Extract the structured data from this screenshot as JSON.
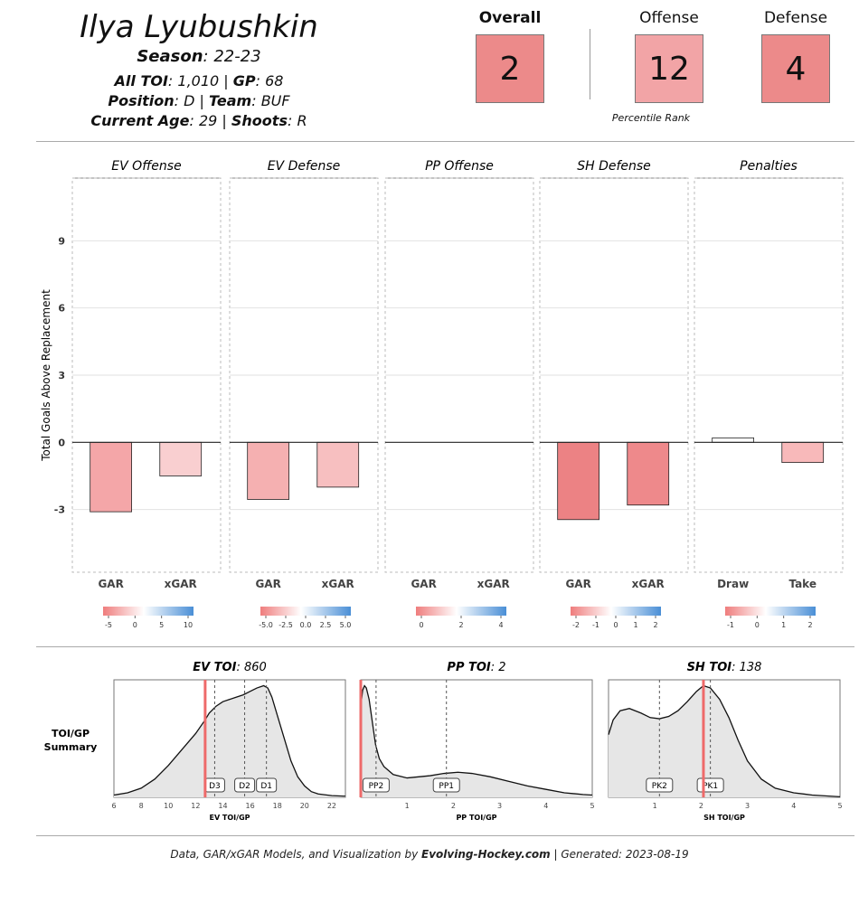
{
  "header": {
    "name": "Ilya Lyubushkin",
    "season_label": "Season",
    "season": "22-23",
    "toi_label": "All TOI",
    "toi": "1,010",
    "gp_label": "GP",
    "gp": "68",
    "position_label": "Position",
    "position": "D",
    "team_label": "Team",
    "team": "BUF",
    "age_label": "Current Age",
    "age": "29",
    "shoots_label": "Shoots",
    "shoots": "R"
  },
  "ranks": {
    "overall_label": "Overall",
    "overall": "2",
    "offense_label": "Offense",
    "offense": "12",
    "defense_label": "Defense",
    "defense": "4",
    "caption": "Percentile Rank",
    "colors": {
      "overall": "#ec8a8a",
      "offense": "#f2a4a6",
      "defense": "#ec8a8a"
    }
  },
  "chart_data": [
    {
      "type": "bar",
      "ylabel": "Total Goals Above Replacement",
      "ylim": [
        -5.8,
        11.8
      ],
      "yticks": [
        -3,
        0,
        3,
        6,
        9
      ],
      "panels": [
        {
          "title": "EV Offense",
          "categories": [
            "GAR",
            "xGAR"
          ],
          "values": [
            -3.1,
            -1.5
          ],
          "colors": [
            "#f4a6a8",
            "#f9cfd0"
          ],
          "legend_ticks": [
            "-5",
            "0",
            "5",
            "10"
          ]
        },
        {
          "title": "EV Defense",
          "categories": [
            "GAR",
            "xGAR"
          ],
          "values": [
            -2.55,
            -2.0
          ],
          "colors": [
            "#f5b0b1",
            "#f7bfc0"
          ],
          "legend_ticks": [
            "-5.0",
            "-2.5",
            "0.0",
            "2.5",
            "5.0"
          ]
        },
        {
          "title": "PP Offense",
          "categories": [
            "GAR",
            "xGAR"
          ],
          "values": [
            0,
            0
          ],
          "colors": [
            "#ffffff",
            "#ffffff"
          ],
          "legend_ticks": [
            "0",
            "2",
            "4"
          ]
        },
        {
          "title": "SH Defense",
          "categories": [
            "GAR",
            "xGAR"
          ],
          "values": [
            -3.45,
            -2.8
          ],
          "colors": [
            "#ec8284",
            "#ee898b"
          ],
          "legend_ticks": [
            "-2",
            "-1",
            "0",
            "1",
            "2"
          ]
        },
        {
          "title": "Penalties",
          "categories": [
            "Draw",
            "Take"
          ],
          "values": [
            0.2,
            -0.9
          ],
          "colors": [
            "#ffffff",
            "#f8b9ba"
          ],
          "legend_ticks": [
            "-1",
            "0",
            "1",
            "2"
          ]
        }
      ]
    },
    {
      "type": "area",
      "summary_label": "TOI/GP Summary",
      "panels": [
        {
          "title_label": "EV TOI",
          "title_value": "860",
          "xlabel": "EV TOI/GP",
          "xlim": [
            6,
            23
          ],
          "xticks": [
            6,
            8,
            10,
            12,
            14,
            16,
            18,
            20,
            22
          ],
          "player": 12.7,
          "density_x": [
            6,
            7,
            8,
            9,
            10,
            11,
            12,
            12.7,
            13,
            13.5,
            14,
            14.5,
            15,
            15.5,
            16,
            16.5,
            17,
            17.3,
            17.6,
            18,
            18.5,
            19,
            19.5,
            20,
            20.5,
            21,
            22,
            23
          ],
          "density_y": [
            0.02,
            0.04,
            0.08,
            0.16,
            0.28,
            0.42,
            0.56,
            0.68,
            0.74,
            0.8,
            0.84,
            0.86,
            0.88,
            0.9,
            0.93,
            0.96,
            0.98,
            0.96,
            0.88,
            0.72,
            0.52,
            0.32,
            0.18,
            0.1,
            0.05,
            0.03,
            0.015,
            0.01
          ],
          "refs": [
            {
              "label": "D3",
              "x": 13.4
            },
            {
              "label": "D2",
              "x": 15.6
            },
            {
              "label": "D1",
              "x": 17.2
            }
          ]
        },
        {
          "title_label": "PP TOI",
          "title_value": "2",
          "xlabel": "PP TOI/GP",
          "xlim": [
            0,
            5
          ],
          "xticks": [
            1,
            2,
            3,
            4,
            5
          ],
          "player": 0,
          "density_x": [
            0,
            0.04,
            0.08,
            0.12,
            0.18,
            0.25,
            0.32,
            0.4,
            0.5,
            0.7,
            1,
            1.5,
            1.8,
            2.1,
            2.4,
            2.8,
            3.2,
            3.6,
            4,
            4.4,
            4.8,
            5
          ],
          "density_y": [
            0.8,
            0.94,
            0.98,
            0.96,
            0.86,
            0.66,
            0.46,
            0.34,
            0.27,
            0.2,
            0.17,
            0.19,
            0.21,
            0.22,
            0.21,
            0.18,
            0.14,
            0.1,
            0.07,
            0.04,
            0.025,
            0.02
          ],
          "refs": [
            {
              "label": "PP2",
              "x": 0.33
            },
            {
              "label": "PP1",
              "x": 1.85
            }
          ]
        },
        {
          "title_label": "SH TOI",
          "title_value": "138",
          "xlabel": "SH TOI/GP",
          "xlim": [
            0,
            5
          ],
          "xticks": [
            1,
            2,
            3,
            4,
            5
          ],
          "player": 2.05,
          "density_x": [
            0,
            0.1,
            0.25,
            0.45,
            0.7,
            0.9,
            1.1,
            1.3,
            1.5,
            1.7,
            1.9,
            2.05,
            2.2,
            2.4,
            2.6,
            2.8,
            3,
            3.3,
            3.6,
            4,
            4.4,
            4.8,
            5
          ],
          "density_y": [
            0.55,
            0.68,
            0.76,
            0.78,
            0.74,
            0.7,
            0.69,
            0.71,
            0.76,
            0.84,
            0.93,
            0.98,
            0.96,
            0.86,
            0.7,
            0.5,
            0.32,
            0.16,
            0.08,
            0.04,
            0.02,
            0.01,
            0.005
          ],
          "refs": [
            {
              "label": "PK2",
              "x": 1.1
            },
            {
              "label": "PK1",
              "x": 2.2
            }
          ]
        }
      ]
    }
  ],
  "footer": {
    "prefix": "Data, GAR/xGAR Models, and Visualization by",
    "brand": "Evolving-Hockey.com",
    "suffix": "| Generated: 2023-08-19"
  }
}
